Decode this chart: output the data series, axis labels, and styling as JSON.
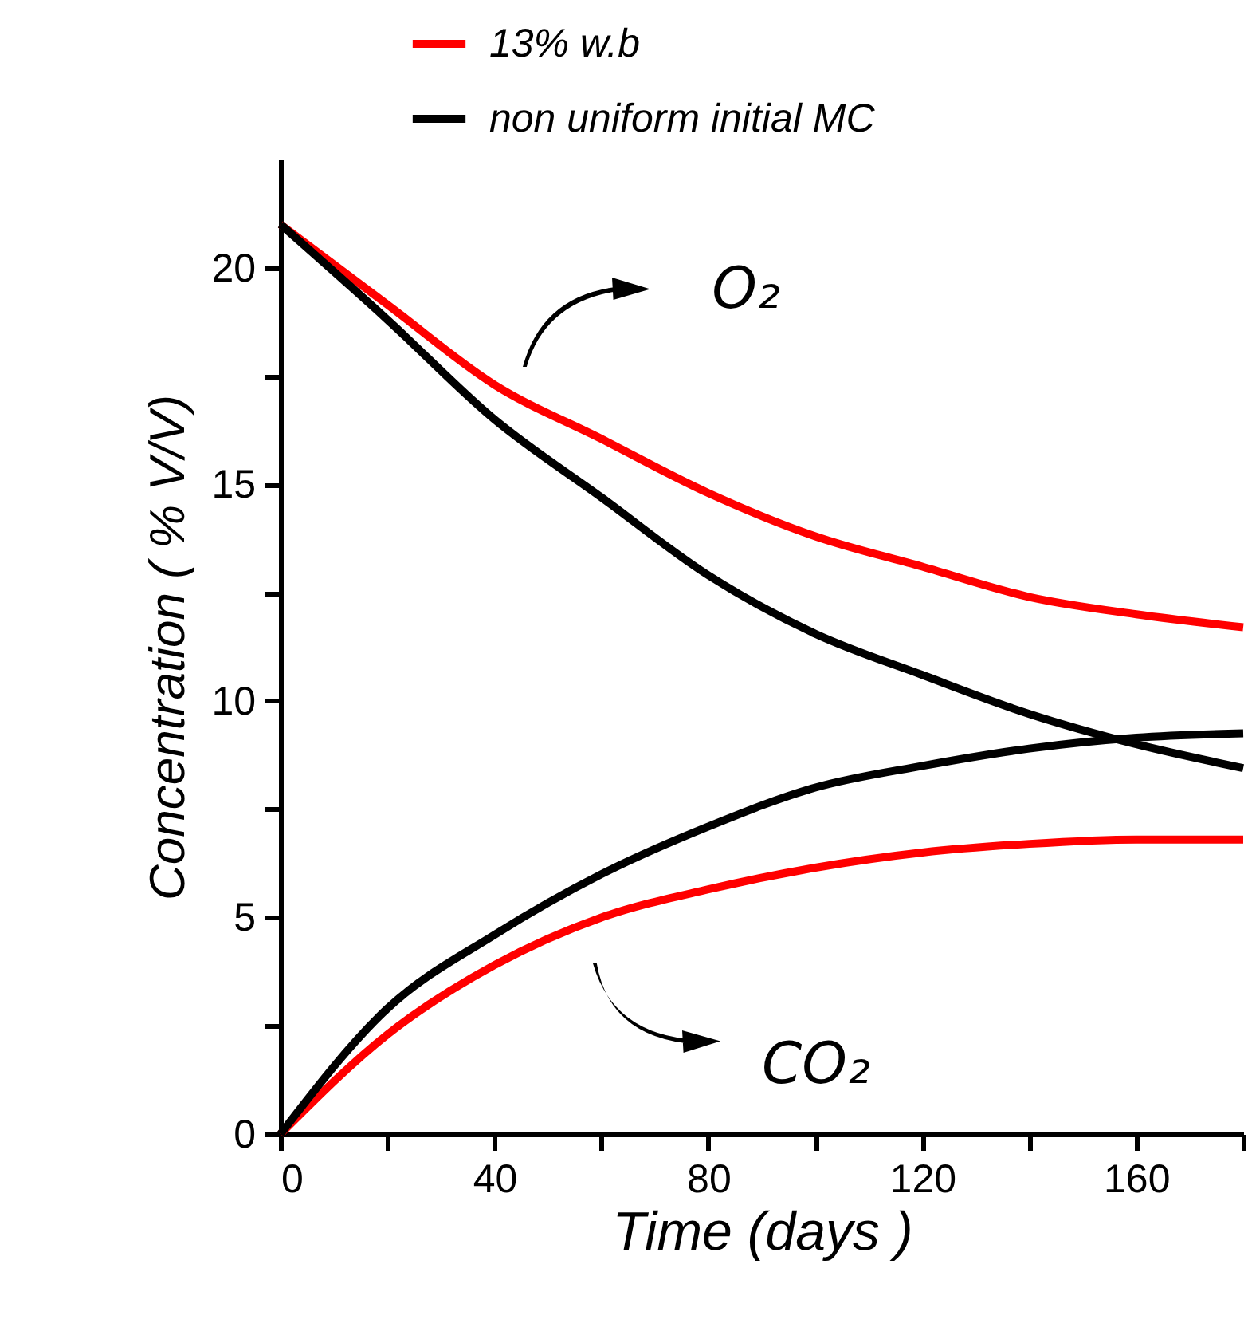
{
  "chart_data": {
    "type": "line",
    "xlabel": "Time (days )",
    "ylabel": "Concentration ( % V/V)",
    "x": [
      0,
      20,
      40,
      60,
      80,
      100,
      120,
      140,
      160,
      180
    ],
    "series": [
      {
        "name": "13% w.b",
        "color": "#ff0000",
        "values": [
          21.0,
          19.15,
          17.3,
          16.05,
          14.8,
          13.8,
          13.1,
          12.4,
          12.0,
          11.7
        ]
      },
      {
        "name": "non uniform initial MC",
        "color": "#000000",
        "values": [
          21.0,
          18.8,
          16.5,
          14.7,
          12.9,
          11.55,
          10.6,
          9.7,
          9.0,
          8.45
        ]
      },
      {
        "color": "#ff0000",
        "values": [
          0,
          2.3,
          3.9,
          5.0,
          5.65,
          6.15,
          6.5,
          6.7,
          6.8,
          6.8
        ]
      },
      {
        "color": "#000000",
        "values": [
          0,
          2.9,
          4.6,
          6.0,
          7.1,
          8.0,
          8.5,
          8.9,
          9.15,
          9.25
        ]
      }
    ],
    "xlim": [
      0,
      180
    ],
    "ylim": [
      0,
      22.5
    ],
    "xticks": [
      0,
      {
        "value": 20,
        "label": null
      },
      40,
      {
        "value": 60,
        "label": null
      },
      80,
      {
        "value": 100,
        "label": null
      },
      120,
      {
        "value": 140,
        "label": null
      },
      160,
      {
        "value": 180,
        "label": null
      }
    ],
    "yticks": [
      0,
      {
        "value": 2.5,
        "label": null
      },
      5,
      {
        "value": 7.5,
        "label": null
      },
      10,
      {
        "value": 12.5,
        "label": null
      },
      15,
      {
        "value": 17.5,
        "label": null
      },
      20
    ],
    "annotations": [
      "O₂",
      "CO₂"
    ],
    "legend": "top",
    "grid": false,
    "marker": "none",
    "line_style": "solid"
  }
}
